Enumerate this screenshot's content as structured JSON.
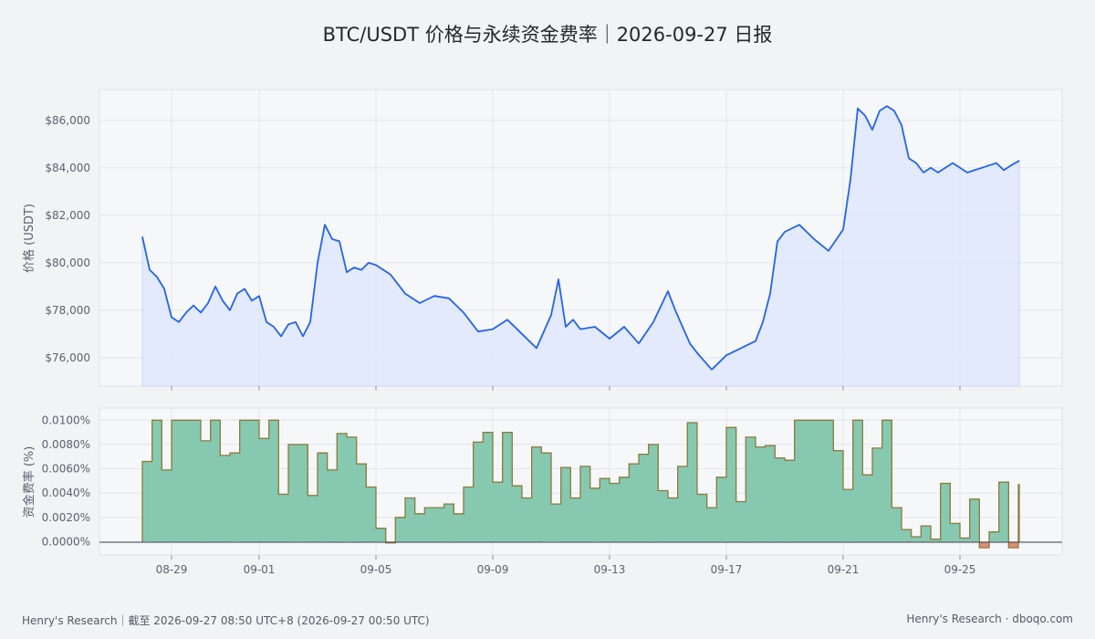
{
  "page": {
    "title": "BTC/USDT 价格与永续资金费率｜2026-09-27 日报",
    "footer_left": "Henry's Research｜截至 2026-09-27 08:50 UTC+8 (2026-09-27 00:50 UTC)",
    "footer_right": "Henry's Research · dboqo.com"
  },
  "colors": {
    "price_line": "#2563eb",
    "price_fill": "#dbe6fb",
    "funding_positive": "#86c9b0",
    "funding_negative": "#e38b7a",
    "funding_edge": "#8a7a3a",
    "plot_bg": "#f6f7f9",
    "grid": "#e2e5ea"
  },
  "chart_data": [
    {
      "type": "line",
      "name": "price",
      "ylabel": "价格 (USDT)",
      "ylim": [
        74800,
        87300
      ],
      "yticks": [
        76000,
        78000,
        80000,
        82000,
        84000,
        86000
      ],
      "ytick_labels": [
        "$76,000",
        "$78,000",
        "$80,000",
        "$82,000",
        "$84,000",
        "$86,000"
      ],
      "fill_baseline": 74800,
      "grid": true,
      "series": [
        {
          "x": [
            "08-28 00:00",
            "08-28 06:00",
            "08-28 12:00",
            "08-28 18:00",
            "08-29 00:00",
            "08-29 06:00",
            "08-29 12:00",
            "08-29 18:00",
            "08-30 00:00",
            "08-30 06:00",
            "08-30 12:00",
            "08-30 18:00",
            "08-31 00:00",
            "08-31 06:00",
            "08-31 12:00",
            "08-31 18:00",
            "09-01 00:00",
            "09-01 06:00",
            "09-01 12:00",
            "09-01 18:00",
            "09-02 00:00",
            "09-02 06:00",
            "09-02 12:00",
            "09-02 18:00",
            "09-03 00:00",
            "09-03 06:00",
            "09-03 12:00",
            "09-03 18:00",
            "09-04 00:00",
            "09-04 06:00",
            "09-04 12:00",
            "09-04 18:00",
            "09-05 00:00",
            "09-05 12:00",
            "09-06 00:00",
            "09-06 12:00",
            "09-07 00:00",
            "09-07 12:00",
            "09-08 00:00",
            "09-08 12:00",
            "09-09 00:00",
            "09-09 12:00",
            "09-10 00:00",
            "09-10 12:00",
            "09-11 00:00",
            "09-11 06:00",
            "09-11 12:00",
            "09-11 18:00",
            "09-12 00:00",
            "09-12 12:00",
            "09-13 00:00",
            "09-13 12:00",
            "09-14 00:00",
            "09-14 12:00",
            "09-15 00:00",
            "09-15 06:00",
            "09-15 12:00",
            "09-15 18:00",
            "09-16 00:00",
            "09-16 12:00",
            "09-17 00:00",
            "09-17 12:00",
            "09-18 00:00",
            "09-18 06:00",
            "09-18 12:00",
            "09-18 18:00",
            "09-19 00:00",
            "09-19 12:00",
            "09-20 00:00",
            "09-20 12:00",
            "09-21 00:00",
            "09-21 06:00",
            "09-21 12:00",
            "09-21 18:00",
            "09-22 00:00",
            "09-22 06:00",
            "09-22 12:00",
            "09-22 18:00",
            "09-23 00:00",
            "09-23 06:00",
            "09-23 12:00",
            "09-23 18:00",
            "09-24 00:00",
            "09-24 06:00",
            "09-24 12:00",
            "09-24 18:00",
            "09-25 00:00",
            "09-25 06:00",
            "09-25 12:00",
            "09-25 18:00",
            "09-26 00:00",
            "09-26 06:00",
            "09-26 12:00",
            "09-26 18:00",
            "09-27 00:50"
          ],
          "y": [
            81100,
            79700,
            79400,
            78900,
            77700,
            77500,
            77900,
            78200,
            77900,
            78300,
            79000,
            78400,
            78000,
            78700,
            78900,
            78400,
            78600,
            77500,
            77300,
            76900,
            77400,
            77500,
            76900,
            77500,
            80000,
            81600,
            81000,
            80900,
            79600,
            79800,
            79700,
            80000,
            79900,
            79500,
            78700,
            78300,
            78600,
            78500,
            77900,
            77100,
            77200,
            77600,
            77000,
            76400,
            77800,
            79300,
            77300,
            77600,
            77200,
            77300,
            76800,
            77300,
            76600,
            77500,
            78800,
            78000,
            77300,
            76600,
            76200,
            75500,
            76100,
            76400,
            76700,
            77500,
            78700,
            80900,
            81300,
            81600,
            81000,
            80500,
            81400,
            83500,
            86500,
            86200,
            85600,
            86400,
            86600,
            86400,
            85800,
            84400,
            84200,
            83800,
            84000,
            83800,
            84000,
            84200,
            84000,
            83800,
            83900,
            84000,
            84100,
            84200,
            83900,
            84100,
            84300
          ]
        }
      ]
    },
    {
      "type": "area",
      "name": "funding_rate",
      "ylabel": "资金费率 (%)",
      "ylim": [
        -0.0011,
        0.011
      ],
      "yticks": [
        0,
        0.002,
        0.004,
        0.006,
        0.008,
        0.01
      ],
      "ytick_labels": [
        "0.0000%",
        "0.0020%",
        "0.0040%",
        "0.0060%",
        "0.0080%",
        "0.0100%"
      ],
      "xtick_labels": [
        "08-29",
        "09-01",
        "09-05",
        "09-09",
        "09-13",
        "09-17",
        "09-21",
        "09-25"
      ],
      "grid": true,
      "series": [
        {
          "values": [
            0.0066,
            0.01,
            0.0059,
            0.01,
            0.01,
            0.01,
            0.0083,
            0.01,
            0.0071,
            0.0073,
            0.01,
            0.01,
            0.0085,
            0.01,
            0.0039,
            0.008,
            0.008,
            0.0038,
            0.0073,
            0.0059,
            0.0089,
            0.0086,
            0.0064,
            0.0045,
            0.0011,
            -0.0001,
            0.002,
            0.0036,
            0.0023,
            0.0028,
            0.0028,
            0.0031,
            0.0023,
            0.0045,
            0.0082,
            0.009,
            0.0049,
            0.009,
            0.0046,
            0.0036,
            0.0078,
            0.0073,
            0.0031,
            0.0061,
            0.0036,
            0.0062,
            0.0044,
            0.0052,
            0.0048,
            0.0053,
            0.0064,
            0.0072,
            0.008,
            0.0042,
            0.0036,
            0.0062,
            0.0098,
            0.0039,
            0.0028,
            0.0053,
            0.0094,
            0.0033,
            0.0086,
            0.0078,
            0.0079,
            0.0069,
            0.0067,
            0.01,
            0.01,
            0.01,
            0.01,
            0.0075,
            0.0043,
            0.01,
            0.0055,
            0.0077,
            0.01,
            0.0028,
            0.001,
            0.0004,
            0.0013,
            0.0002,
            0.0048,
            0.0015,
            0.0003,
            0.0035,
            -0.0005,
            0.0008,
            0.0049,
            -0.0005,
            0.0047
          ]
        }
      ]
    }
  ]
}
